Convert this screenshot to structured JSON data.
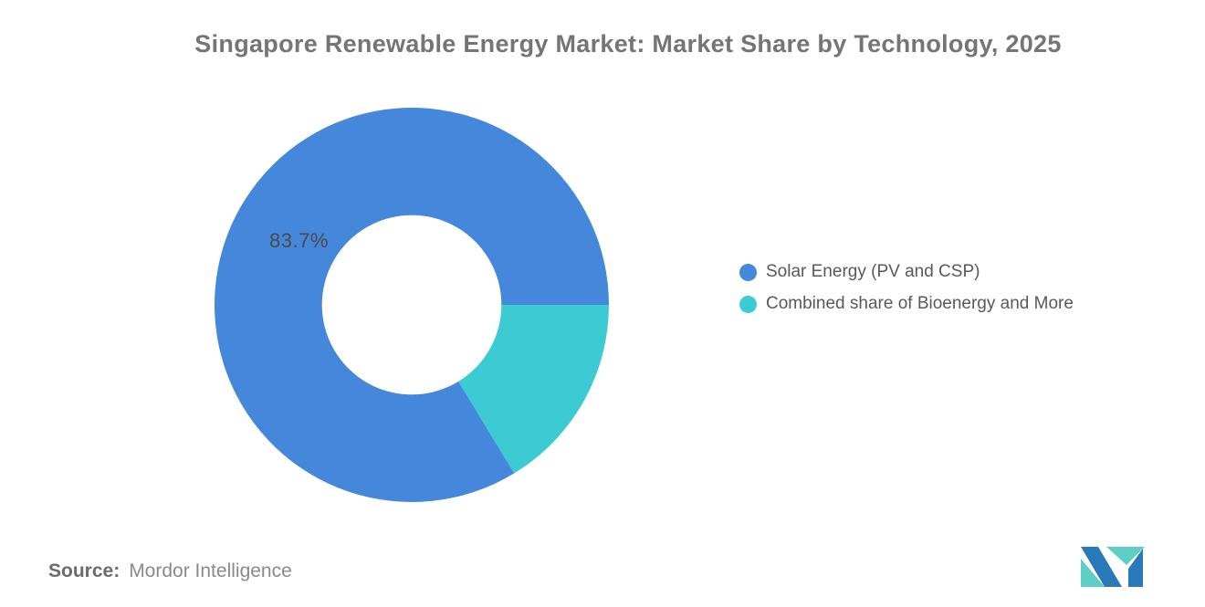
{
  "title": "Singapore Renewable Energy Market: Market Share by Technology, 2025",
  "chart_data": {
    "type": "pie",
    "subtype": "donut",
    "title": "Singapore Renewable Energy Market: Market Share by Technology, 2025",
    "slices": [
      {
        "label": "Solar Energy (PV and CSP)",
        "value": 83.7,
        "color": "#4587DA",
        "data_label": "83.7%"
      },
      {
        "label": "Combined share of Bioenergy and More",
        "value": 16.3,
        "color": "#3DCBD3",
        "data_label": ""
      }
    ],
    "start_angle_deg": 0,
    "direction": "clockwise",
    "inner_radius_ratio": 0.455,
    "legend_position": "right",
    "visible_data_labels": [
      "83.7%"
    ]
  },
  "footer": {
    "source_label": "Source:",
    "source_value": "Mordor Intelligence"
  },
  "logo": {
    "name": "mordor-intelligence-logo",
    "colors": {
      "blue": "#2A7AB9",
      "teal": "#5FCFC6"
    }
  }
}
